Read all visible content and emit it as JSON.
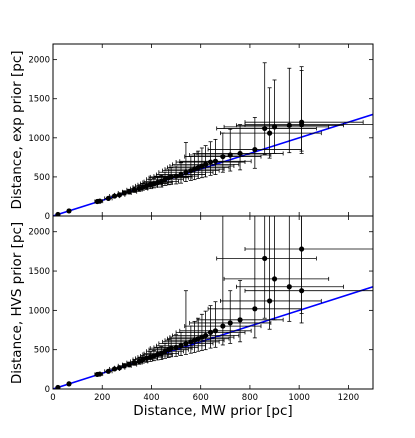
{
  "chart_data": [
    {
      "type": "scatter",
      "panel": "top",
      "title": "",
      "xlabel": "",
      "ylabel": "Distance, exp prior [pc]",
      "xlim": [
        0,
        1300
      ],
      "ylim": [
        0,
        2200
      ],
      "x_ticks": [
        0,
        200,
        400,
        600,
        800,
        1000,
        1200
      ],
      "y_ticks": [
        0,
        500,
        1000,
        1500,
        2000
      ],
      "x_tick_labels_shown": false,
      "grid": false,
      "legend": "none",
      "reference_line": {
        "slope": 1,
        "intercept": 0,
        "color": "#0000ff"
      },
      "point_color": "#000000",
      "errorbar_color": "#000000",
      "points": [
        {
          "x": 20,
          "y": 20,
          "xlo": 18,
          "xhi": 22,
          "ylo": 18,
          "yhi": 22
        },
        {
          "x": 65,
          "y": 65,
          "xlo": 60,
          "xhi": 70,
          "ylo": 60,
          "yhi": 70
        },
        {
          "x": 180,
          "y": 185,
          "xlo": 170,
          "xhi": 192,
          "ylo": 175,
          "yhi": 195
        },
        {
          "x": 190,
          "y": 190,
          "xlo": 178,
          "xhi": 202,
          "ylo": 178,
          "yhi": 202
        },
        {
          "x": 225,
          "y": 225,
          "xlo": 210,
          "xhi": 240,
          "ylo": 210,
          "yhi": 240
        },
        {
          "x": 250,
          "y": 255,
          "xlo": 230,
          "xhi": 270,
          "ylo": 235,
          "yhi": 275
        },
        {
          "x": 270,
          "y": 270,
          "xlo": 250,
          "xhi": 292,
          "ylo": 250,
          "yhi": 292
        },
        {
          "x": 290,
          "y": 295,
          "xlo": 265,
          "xhi": 318,
          "ylo": 270,
          "yhi": 322
        },
        {
          "x": 310,
          "y": 310,
          "xlo": 282,
          "xhi": 340,
          "ylo": 282,
          "yhi": 342
        },
        {
          "x": 330,
          "y": 335,
          "xlo": 300,
          "xhi": 362,
          "ylo": 302,
          "yhi": 370
        },
        {
          "x": 350,
          "y": 350,
          "xlo": 315,
          "xhi": 385,
          "ylo": 315,
          "yhi": 390
        },
        {
          "x": 365,
          "y": 370,
          "xlo": 325,
          "xhi": 405,
          "ylo": 330,
          "yhi": 415
        },
        {
          "x": 380,
          "y": 385,
          "xlo": 335,
          "xhi": 425,
          "ylo": 340,
          "yhi": 435
        },
        {
          "x": 395,
          "y": 400,
          "xlo": 345,
          "xhi": 445,
          "ylo": 350,
          "yhi": 460
        },
        {
          "x": 410,
          "y": 415,
          "xlo": 355,
          "xhi": 465,
          "ylo": 360,
          "yhi": 480
        },
        {
          "x": 425,
          "y": 430,
          "xlo": 365,
          "xhi": 485,
          "ylo": 370,
          "yhi": 500
        },
        {
          "x": 440,
          "y": 440,
          "xlo": 370,
          "xhi": 510,
          "ylo": 370,
          "yhi": 520
        },
        {
          "x": 455,
          "y": 470,
          "xlo": 380,
          "xhi": 530,
          "ylo": 390,
          "yhi": 560
        },
        {
          "x": 470,
          "y": 490,
          "xlo": 390,
          "xhi": 550,
          "ylo": 400,
          "yhi": 600
        },
        {
          "x": 480,
          "y": 500,
          "xlo": 395,
          "xhi": 565,
          "ylo": 405,
          "yhi": 620
        },
        {
          "x": 500,
          "y": 510,
          "xlo": 410,
          "xhi": 590,
          "ylo": 410,
          "yhi": 640
        },
        {
          "x": 520,
          "y": 530,
          "xlo": 420,
          "xhi": 620,
          "ylo": 420,
          "yhi": 680
        },
        {
          "x": 540,
          "y": 560,
          "xlo": 430,
          "xhi": 650,
          "ylo": 440,
          "yhi": 940
        },
        {
          "x": 560,
          "y": 580,
          "xlo": 445,
          "xhi": 675,
          "ylo": 455,
          "yhi": 760
        },
        {
          "x": 575,
          "y": 600,
          "xlo": 455,
          "xhi": 695,
          "ylo": 465,
          "yhi": 800
        },
        {
          "x": 590,
          "y": 620,
          "xlo": 465,
          "xhi": 715,
          "ylo": 480,
          "yhi": 830
        },
        {
          "x": 605,
          "y": 640,
          "xlo": 475,
          "xhi": 735,
          "ylo": 490,
          "yhi": 870
        },
        {
          "x": 620,
          "y": 660,
          "xlo": 485,
          "xhi": 755,
          "ylo": 500,
          "yhi": 900
        },
        {
          "x": 640,
          "y": 690,
          "xlo": 500,
          "xhi": 780,
          "ylo": 520,
          "yhi": 950
        },
        {
          "x": 660,
          "y": 700,
          "xlo": 515,
          "xhi": 805,
          "ylo": 530,
          "yhi": 980
        },
        {
          "x": 690,
          "y": 760,
          "xlo": 535,
          "xhi": 845,
          "ylo": 560,
          "yhi": 1060
        },
        {
          "x": 720,
          "y": 780,
          "xlo": 555,
          "xhi": 885,
          "ylo": 575,
          "yhi": 1110
        },
        {
          "x": 760,
          "y": 800,
          "xlo": 585,
          "xhi": 935,
          "ylo": 590,
          "yhi": 1170
        },
        {
          "x": 820,
          "y": 850,
          "xlo": 630,
          "xhi": 1010,
          "ylo": 610,
          "yhi": 1260
        },
        {
          "x": 860,
          "y": 1120,
          "xlo": 665,
          "xhi": 1070,
          "ylo": 790,
          "yhi": 1960
        },
        {
          "x": 880,
          "y": 1060,
          "xlo": 680,
          "xhi": 1090,
          "ylo": 740,
          "yhi": 1640
        },
        {
          "x": 900,
          "y": 1140,
          "xlo": 695,
          "xhi": 1120,
          "ylo": 800,
          "yhi": 1740
        },
        {
          "x": 960,
          "y": 1160,
          "xlo": 745,
          "xhi": 1180,
          "ylo": 810,
          "yhi": 1890
        },
        {
          "x": 1010,
          "y": 1200,
          "xlo": 780,
          "xhi": 1260,
          "ylo": 830,
          "yhi": 1910
        },
        {
          "x": 1010,
          "y": 1170,
          "xlo": 780,
          "xhi": 1300,
          "ylo": 800,
          "yhi": 1860
        }
      ]
    },
    {
      "type": "scatter",
      "panel": "bottom",
      "title": "",
      "xlabel": "Distance, MW prior [pc]",
      "ylabel": "Distance, HVS prior [pc]",
      "xlim": [
        0,
        1300
      ],
      "ylim": [
        0,
        2200
      ],
      "x_ticks": [
        0,
        200,
        400,
        600,
        800,
        1000,
        1200
      ],
      "y_ticks": [
        0,
        500,
        1000,
        1500,
        2000
      ],
      "x_tick_labels_shown": true,
      "grid": false,
      "legend": "none",
      "reference_line": {
        "slope": 1,
        "intercept": 0,
        "color": "#0000ff"
      },
      "point_color": "#000000",
      "errorbar_color": "#000000",
      "points": [
        {
          "x": 20,
          "y": 20,
          "xlo": 18,
          "xhi": 22,
          "ylo": 18,
          "yhi": 22
        },
        {
          "x": 65,
          "y": 65,
          "xlo": 60,
          "xhi": 70,
          "ylo": 60,
          "yhi": 70
        },
        {
          "x": 180,
          "y": 185,
          "xlo": 170,
          "xhi": 192,
          "ylo": 175,
          "yhi": 195
        },
        {
          "x": 190,
          "y": 190,
          "xlo": 178,
          "xhi": 202,
          "ylo": 178,
          "yhi": 202
        },
        {
          "x": 225,
          "y": 225,
          "xlo": 210,
          "xhi": 240,
          "ylo": 210,
          "yhi": 240
        },
        {
          "x": 250,
          "y": 255,
          "xlo": 230,
          "xhi": 270,
          "ylo": 235,
          "yhi": 275
        },
        {
          "x": 270,
          "y": 270,
          "xlo": 250,
          "xhi": 292,
          "ylo": 250,
          "yhi": 292
        },
        {
          "x": 290,
          "y": 295,
          "xlo": 265,
          "xhi": 318,
          "ylo": 270,
          "yhi": 322
        },
        {
          "x": 310,
          "y": 310,
          "xlo": 282,
          "xhi": 340,
          "ylo": 282,
          "yhi": 342
        },
        {
          "x": 330,
          "y": 335,
          "xlo": 300,
          "xhi": 362,
          "ylo": 302,
          "yhi": 372
        },
        {
          "x": 350,
          "y": 350,
          "xlo": 315,
          "xhi": 385,
          "ylo": 315,
          "yhi": 395
        },
        {
          "x": 365,
          "y": 375,
          "xlo": 325,
          "xhi": 405,
          "ylo": 330,
          "yhi": 425
        },
        {
          "x": 380,
          "y": 390,
          "xlo": 335,
          "xhi": 425,
          "ylo": 340,
          "yhi": 445
        },
        {
          "x": 395,
          "y": 405,
          "xlo": 345,
          "xhi": 445,
          "ylo": 350,
          "yhi": 470
        },
        {
          "x": 410,
          "y": 420,
          "xlo": 355,
          "xhi": 465,
          "ylo": 360,
          "yhi": 490
        },
        {
          "x": 425,
          "y": 440,
          "xlo": 365,
          "xhi": 485,
          "ylo": 370,
          "yhi": 520
        },
        {
          "x": 440,
          "y": 450,
          "xlo": 370,
          "xhi": 510,
          "ylo": 375,
          "yhi": 540
        },
        {
          "x": 455,
          "y": 480,
          "xlo": 380,
          "xhi": 530,
          "ylo": 390,
          "yhi": 580
        },
        {
          "x": 470,
          "y": 500,
          "xlo": 390,
          "xhi": 550,
          "ylo": 400,
          "yhi": 630
        },
        {
          "x": 480,
          "y": 520,
          "xlo": 395,
          "xhi": 565,
          "ylo": 410,
          "yhi": 660
        },
        {
          "x": 500,
          "y": 530,
          "xlo": 410,
          "xhi": 590,
          "ylo": 415,
          "yhi": 690
        },
        {
          "x": 520,
          "y": 550,
          "xlo": 420,
          "xhi": 620,
          "ylo": 425,
          "yhi": 720
        },
        {
          "x": 540,
          "y": 580,
          "xlo": 430,
          "xhi": 650,
          "ylo": 440,
          "yhi": 1250
        },
        {
          "x": 560,
          "y": 600,
          "xlo": 445,
          "xhi": 675,
          "ylo": 455,
          "yhi": 800
        },
        {
          "x": 575,
          "y": 620,
          "xlo": 455,
          "xhi": 695,
          "ylo": 465,
          "yhi": 860
        },
        {
          "x": 590,
          "y": 640,
          "xlo": 465,
          "xhi": 715,
          "ylo": 480,
          "yhi": 900
        },
        {
          "x": 605,
          "y": 660,
          "xlo": 475,
          "xhi": 735,
          "ylo": 490,
          "yhi": 950
        },
        {
          "x": 620,
          "y": 680,
          "xlo": 485,
          "xhi": 755,
          "ylo": 500,
          "yhi": 990
        },
        {
          "x": 640,
          "y": 720,
          "xlo": 500,
          "xhi": 780,
          "ylo": 520,
          "yhi": 1060
        },
        {
          "x": 660,
          "y": 740,
          "xlo": 515,
          "xhi": 805,
          "ylo": 530,
          "yhi": 1110
        },
        {
          "x": 690,
          "y": 800,
          "xlo": 535,
          "xhi": 845,
          "ylo": 560,
          "yhi": 2200
        },
        {
          "x": 720,
          "y": 840,
          "xlo": 555,
          "xhi": 885,
          "ylo": 580,
          "yhi": 1250
        },
        {
          "x": 760,
          "y": 880,
          "xlo": 585,
          "xhi": 935,
          "ylo": 600,
          "yhi": 1380
        },
        {
          "x": 820,
          "y": 1020,
          "xlo": 630,
          "xhi": 1010,
          "ylo": 650,
          "yhi": 2200
        },
        {
          "x": 860,
          "y": 1660,
          "xlo": 665,
          "xhi": 1070,
          "ylo": 900,
          "yhi": 2200
        },
        {
          "x": 880,
          "y": 1120,
          "xlo": 680,
          "xhi": 1090,
          "ylo": 760,
          "yhi": 2200
        },
        {
          "x": 900,
          "y": 1400,
          "xlo": 695,
          "xhi": 1120,
          "ylo": 880,
          "yhi": 2200
        },
        {
          "x": 960,
          "y": 1300,
          "xlo": 745,
          "xhi": 1180,
          "ylo": 860,
          "yhi": 2200
        },
        {
          "x": 1010,
          "y": 1780,
          "xlo": 780,
          "xhi": 1300,
          "ylo": 960,
          "yhi": 2200
        },
        {
          "x": 1010,
          "y": 1250,
          "xlo": 780,
          "xhi": 1300,
          "ylo": 840,
          "yhi": 2200
        }
      ]
    }
  ]
}
